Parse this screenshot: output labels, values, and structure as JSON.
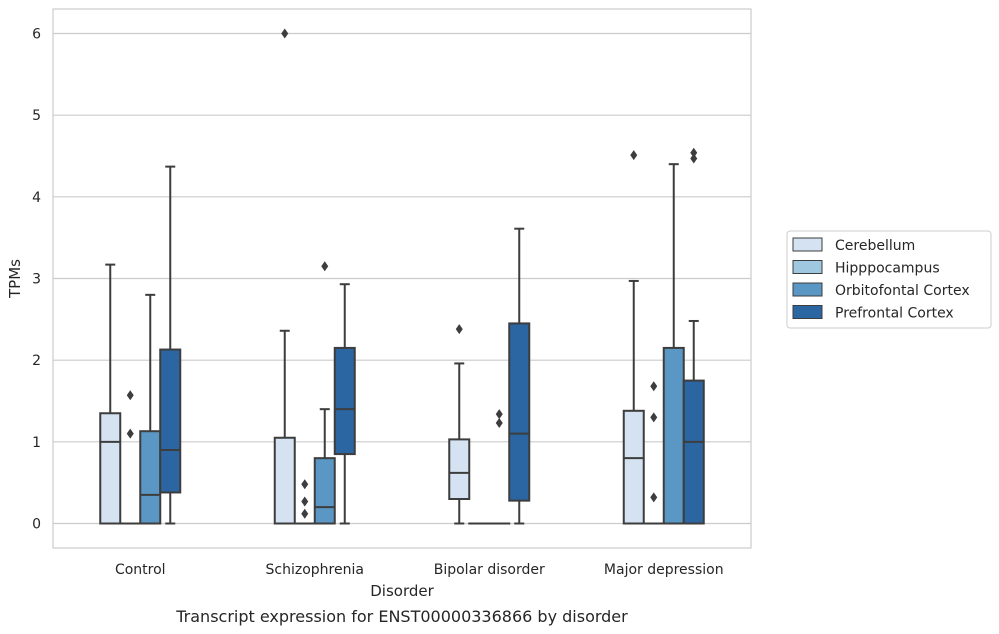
{
  "chart_data": {
    "type": "box",
    "caption": "Transcript expression for ENST00000336866 by disorder",
    "xlabel": "Disorder",
    "ylabel": "TPMs",
    "ylim": [
      -0.3,
      6.3
    ],
    "yticks": [
      "0",
      "1",
      "2",
      "3",
      "4",
      "5",
      "6"
    ],
    "grid": true,
    "legend_position": "right",
    "categories": [
      "Control",
      "Schizophrenia",
      "Bipolar disorder",
      "Major depression"
    ],
    "series": [
      {
        "name": "Cerebellum",
        "color": "#d4e2f1",
        "boxes": [
          {
            "whislo": 0,
            "q1": 0,
            "med": 1.0,
            "q3": 1.35,
            "whishi": 3.17,
            "fliers": []
          },
          {
            "whislo": 0,
            "q1": 0,
            "med": 0,
            "q3": 1.05,
            "whishi": 2.36,
            "fliers": [
              6.0
            ]
          },
          {
            "whislo": 0,
            "q1": 0.3,
            "med": 0.62,
            "q3": 1.03,
            "whishi": 1.96,
            "fliers": [
              2.38
            ]
          },
          {
            "whislo": 0,
            "q1": 0,
            "med": 0.8,
            "q3": 1.38,
            "whishi": 2.97,
            "fliers": [
              4.51
            ]
          }
        ]
      },
      {
        "name": "Hipppocampus",
        "color": "#9fc8e0",
        "boxes": [
          {
            "whislo": 0,
            "q1": 0,
            "med": 0,
            "q3": 0,
            "whishi": 0,
            "fliers": [
              1.1,
              1.57
            ]
          },
          {
            "whislo": 0,
            "q1": 0,
            "med": 0,
            "q3": 0,
            "whishi": 0,
            "fliers": [
              0.12,
              0.27,
              0.48
            ]
          },
          {
            "whislo": 0,
            "q1": 0,
            "med": 0,
            "q3": 0,
            "whishi": 0,
            "fliers": []
          },
          {
            "whislo": 0,
            "q1": 0,
            "med": 0,
            "q3": 0,
            "whishi": 0,
            "fliers": [
              0.32,
              1.3,
              1.68
            ]
          }
        ]
      },
      {
        "name": "Orbitofontal Cortex",
        "color": "#5a97c4",
        "boxes": [
          {
            "whislo": 0,
            "q1": 0,
            "med": 0.35,
            "q3": 1.13,
            "whishi": 2.8,
            "fliers": []
          },
          {
            "whislo": 0,
            "q1": 0,
            "med": 0.2,
            "q3": 0.8,
            "whishi": 1.4,
            "fliers": [
              3.15
            ]
          },
          {
            "whislo": 0,
            "q1": 0,
            "med": 0,
            "q3": 0,
            "whishi": 0,
            "fliers": [
              1.23,
              1.34
            ]
          },
          {
            "whislo": 0,
            "q1": 0,
            "med": 0,
            "q3": 2.15,
            "whishi": 4.4,
            "fliers": []
          }
        ]
      },
      {
        "name": "Prefrontal Cortex",
        "color": "#2b66a3",
        "boxes": [
          {
            "whislo": 0,
            "q1": 0.38,
            "med": 0.9,
            "q3": 2.13,
            "whishi": 4.37,
            "fliers": []
          },
          {
            "whislo": 0,
            "q1": 0.85,
            "med": 1.4,
            "q3": 2.15,
            "whishi": 2.93,
            "fliers": []
          },
          {
            "whislo": 0,
            "q1": 0.28,
            "med": 1.1,
            "q3": 2.45,
            "whishi": 3.61,
            "fliers": []
          },
          {
            "whislo": 0,
            "q1": 0,
            "med": 1.0,
            "q3": 1.75,
            "whishi": 2.48,
            "fliers": [
              4.47,
              4.54
            ]
          }
        ]
      }
    ]
  }
}
